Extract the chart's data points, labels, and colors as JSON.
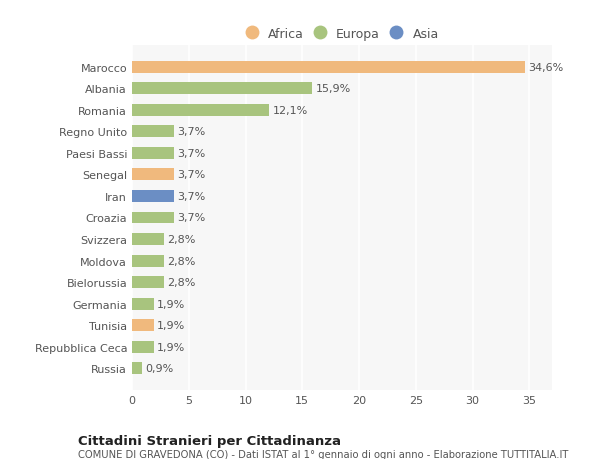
{
  "categories": [
    "Marocco",
    "Albania",
    "Romania",
    "Regno Unito",
    "Paesi Bassi",
    "Senegal",
    "Iran",
    "Croazia",
    "Svizzera",
    "Moldova",
    "Bielorussia",
    "Germania",
    "Tunisia",
    "Repubblica Ceca",
    "Russia"
  ],
  "values": [
    34.6,
    15.9,
    12.1,
    3.7,
    3.7,
    3.7,
    3.7,
    3.7,
    2.8,
    2.8,
    2.8,
    1.9,
    1.9,
    1.9,
    0.9
  ],
  "colors": [
    "#f0b97d",
    "#a8c47e",
    "#a8c47e",
    "#a8c47e",
    "#a8c47e",
    "#f0b97d",
    "#6b8ec4",
    "#a8c47e",
    "#a8c47e",
    "#a8c47e",
    "#a8c47e",
    "#a8c47e",
    "#f0b97d",
    "#a8c47e",
    "#a8c47e"
  ],
  "labels": [
    "34,6%",
    "15,9%",
    "12,1%",
    "3,7%",
    "3,7%",
    "3,7%",
    "3,7%",
    "3,7%",
    "2,8%",
    "2,8%",
    "2,8%",
    "1,9%",
    "1,9%",
    "1,9%",
    "0,9%"
  ],
  "legend": [
    {
      "label": "Africa",
      "color": "#f0b97d"
    },
    {
      "label": "Europa",
      "color": "#a8c47e"
    },
    {
      "label": "Asia",
      "color": "#6b8ec4"
    }
  ],
  "xlim": [
    0,
    37
  ],
  "xticks": [
    0,
    5,
    10,
    15,
    20,
    25,
    30,
    35
  ],
  "title": "Cittadini Stranieri per Cittadinanza",
  "subtitle": "COMUNE DI GRAVEDONA (CO) - Dati ISTAT al 1° gennaio di ogni anno - Elaborazione TUTTITALIA.IT",
  "background_color": "#ffffff",
  "plot_bg_color": "#f7f7f7",
  "grid_color": "#ffffff"
}
